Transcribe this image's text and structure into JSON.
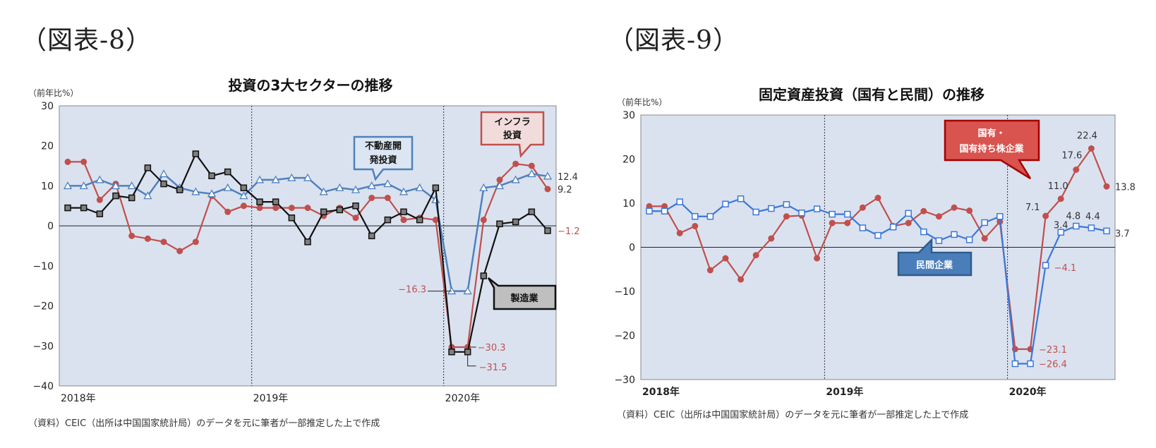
{
  "figures": {
    "fig8_label": "（図表-8）",
    "fig9_label": "（図表-9）"
  },
  "colors": {
    "plot_bg": "#dae2f0",
    "red": "#c0504d",
    "blue": "#4f81bd",
    "blue_line": "#3c78d8",
    "black": "#111111",
    "callout_blue_fill": "#dce6f2",
    "callout_blue_stroke": "#4f81bd",
    "callout_red_fill": "#f2dcdb",
    "callout_red_stroke": "#c0504d",
    "callout_gray_fill": "#bfbfbf",
    "callout_dark_red_fill": "#d9534f",
    "callout_dark_red_stroke": "#a50000",
    "callout_dark_blue_fill": "#4a7ebb",
    "callout_dark_blue_stroke": "#2e5c8a"
  },
  "chart_data": [
    {
      "type": "line",
      "title": "投資の3大セクターの推移",
      "unit_label": "（前年比%）",
      "ylim": [
        -40,
        30
      ],
      "yticks": [
        30,
        20,
        10,
        0,
        -10,
        -20,
        -30,
        -40
      ],
      "xtick_labels": [
        "2018年",
        "2019年",
        "2020年"
      ],
      "grid": false,
      "note": "（資料）CEIC（出所は中国国家統計局）のデータを元に筆者が一部推定した上で作成",
      "series": [
        {
          "name": "インフラ投資",
          "color": "#c0504d",
          "marker": "circle",
          "values": [
            16,
            16,
            6.5,
            10.5,
            -2.5,
            -3.2,
            -4,
            -6.3,
            -4,
            7.5,
            3.5,
            5,
            4.5,
            4.5,
            4.5,
            4.5,
            2.5,
            4.5,
            2,
            7,
            7,
            1.5,
            2,
            1.5,
            -30.3,
            -30.3,
            1.5,
            11.5,
            15.5,
            15,
            9.2
          ]
        },
        {
          "name": "不動産開発投資",
          "color": "#4f81bd",
          "marker": "triangle",
          "values": [
            10,
            10,
            11.5,
            10,
            10,
            7.5,
            13,
            9.5,
            8.5,
            8,
            9.5,
            7.5,
            11.5,
            11.5,
            12,
            12,
            8.5,
            9.5,
            9,
            10,
            10.5,
            8.5,
            9.5,
            6.5,
            -16.3,
            -16.3,
            9.5,
            10,
            11.5,
            13,
            12.4
          ]
        },
        {
          "name": "製造業",
          "color": "#111111",
          "marker": "square",
          "values": [
            4.5,
            4.5,
            3,
            7.5,
            7,
            14.5,
            10.5,
            9,
            18,
            12.5,
            13.5,
            9.5,
            6,
            6,
            2,
            -4,
            3.5,
            4,
            5,
            -2.5,
            1.5,
            3.5,
            1.5,
            9.5,
            -31.5,
            -31.5,
            -12.5,
            0.5,
            1,
            3.5,
            -1.2
          ]
        }
      ],
      "data_labels": {
        "infra_end": "9.2",
        "realestate_end": "12.4",
        "mfg_end": "−1.2",
        "realestate_low": "−16.3",
        "infra_low": "−30.3",
        "mfg_low": "−31.5"
      },
      "callouts": {
        "realestate": [
          "不動産開",
          "発投資"
        ],
        "infra": [
          "インフラ",
          "投資"
        ],
        "mfg": "製造業"
      }
    },
    {
      "type": "line",
      "title": "固定資産投資（国有と民間）の推移",
      "unit_label": "（前年比%）",
      "ylim": [
        -30,
        30
      ],
      "yticks": [
        30,
        20,
        10,
        0,
        -10,
        -20,
        -30
      ],
      "xtick_labels": [
        "2018年",
        "2019年",
        "2020年"
      ],
      "grid": false,
      "note": "（資料）CEIC（出所は中国国家統計局）のデータを元に筆者が一部推定した上で作成",
      "series": [
        {
          "name": "国有・国有持ち株企業",
          "color": "#c0504d",
          "marker": "circle",
          "values": [
            9.3,
            9.3,
            3.2,
            4.8,
            -5.2,
            -2.5,
            -7.3,
            -1.8,
            2,
            7,
            7.2,
            -2.5,
            5.5,
            5.5,
            9,
            11.2,
            4.8,
            5.5,
            8.2,
            7,
            9,
            8.3,
            2,
            5.8,
            -23.1,
            -23.1,
            7.1,
            11,
            17.6,
            22.4,
            13.8
          ]
        },
        {
          "name": "民間企業",
          "color": "#3c78d8",
          "marker": "square",
          "values": [
            8.2,
            8.2,
            10.3,
            7,
            7,
            9.8,
            11,
            8,
            8.8,
            9.7,
            7.8,
            8.7,
            7.5,
            7.5,
            4.4,
            2.7,
            4.6,
            7.7,
            3.5,
            1.5,
            2.9,
            1.7,
            5.6,
            7,
            -26.4,
            -26.4,
            -4.1,
            3.4,
            4.8,
            4.4,
            3.7
          ]
        }
      ],
      "data_labels": {
        "soe_low": "−23.1",
        "priv_low": "−26.4",
        "priv_m3": "−4.1",
        "soe_m3": "7.1",
        "soe_m4": "11.0",
        "soe_m5": "17.6",
        "soe_m6": "22.4",
        "soe_end": "13.8",
        "priv_m4": "3.4",
        "priv_m5": "4.8",
        "priv_m6": "4.4",
        "priv_end": "3.7"
      },
      "callouts": {
        "soe": [
          "国有・",
          "国有持ち株企業"
        ],
        "priv": "民間企業"
      }
    }
  ]
}
